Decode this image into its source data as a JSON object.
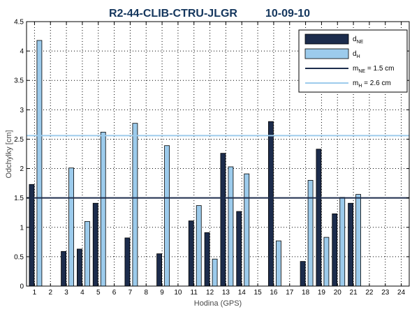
{
  "chart_data": {
    "type": "bar",
    "title": "R2-44-CLIB-CTRU-JLGR",
    "title_date": "10-09-10",
    "xlabel": "Hodina (GPS)",
    "ylabel": "Odchylky [cm]",
    "ylim": [
      0,
      4.5
    ],
    "yticks": [
      "0",
      "0.5",
      "1",
      "1.5",
      "2",
      "2.5",
      "3",
      "3.5",
      "4",
      "4.5"
    ],
    "categories": [
      "1",
      "2",
      "3",
      "4",
      "5",
      "6",
      "7",
      "8",
      "9",
      "10",
      "11",
      "12",
      "13",
      "14",
      "15",
      "16",
      "17",
      "18",
      "19",
      "20",
      "21",
      "22",
      "23",
      "24"
    ],
    "grid": true,
    "legend_position": "top-right",
    "series": [
      {
        "name": "d",
        "name_sub": "NE",
        "color": "#1c2c4c",
        "values": [
          1.73,
          null,
          0.59,
          0.63,
          1.41,
          null,
          0.82,
          null,
          0.55,
          null,
          1.11,
          0.91,
          2.26,
          1.27,
          null,
          2.8,
          null,
          0.42,
          2.33,
          1.23,
          1.41,
          null,
          null,
          null
        ]
      },
      {
        "name": "d",
        "name_sub": "H",
        "color": "#9ccbec",
        "values": [
          4.18,
          null,
          2.01,
          1.1,
          2.62,
          null,
          2.77,
          null,
          2.39,
          null,
          1.37,
          0.46,
          2.03,
          1.91,
          null,
          0.77,
          null,
          1.8,
          0.83,
          1.51,
          1.56,
          null,
          null,
          null
        ]
      }
    ],
    "reference_lines": [
      {
        "name": "m",
        "name_sub": "NE",
        "label_suffix": " = 1.5 cm",
        "value": 1.5,
        "color": "#1c2c4c"
      },
      {
        "name": "m",
        "name_sub": "H",
        "label_suffix": "  = 2.6 cm",
        "value": 2.56,
        "color": "#9ccbec"
      }
    ]
  }
}
